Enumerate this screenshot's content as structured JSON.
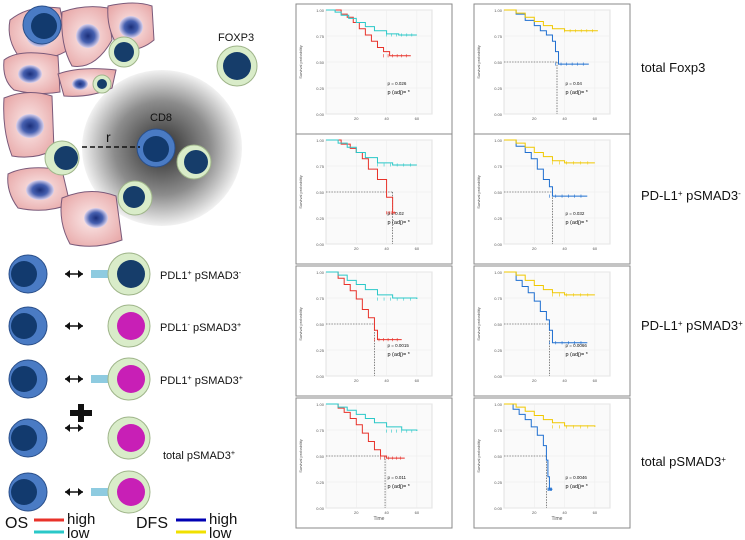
{
  "schematic": {
    "foxp3_label": "FOXP3",
    "cd8_label": "CD8",
    "radius_label": "r",
    "rows": [
      {
        "label": "PDL1",
        "sup1": "+",
        "label2": "pSMAD3",
        "sup2": "-",
        "inner": "navy",
        "has_pdl1": true
      },
      {
        "label": "PDL1",
        "sup1": "-",
        "label2": "pSMAD3",
        "sup2": "+",
        "inner": "magenta",
        "has_pdl1": false
      },
      {
        "label": "PDL1",
        "sup1": "+",
        "label2": "pSMAD3",
        "sup2": "+",
        "inner": "magenta",
        "has_pdl1": true
      }
    ],
    "total_label": "total pSMAD3",
    "total_sup": "+",
    "colors": {
      "cell_body": "#f0c8c8",
      "cell_border": "#8a6a8a",
      "nucleus": "#2a3f8a",
      "tcell_outer": "#4a7bc4",
      "tcell_inner": "#123a6e",
      "target_outer": "#d9ecc9",
      "target_inner_navy": "#163d6a",
      "target_inner_magenta": "#c81fb6",
      "pdl1": "#8ecbe0"
    }
  },
  "legend": {
    "os_label": "OS",
    "dfs_label": "DFS",
    "os_high": "high",
    "os_low": "low",
    "dfs_high": "high",
    "dfs_low": "low",
    "os_high_color": "#e8322a",
    "os_low_color": "#2ac8c8",
    "dfs_high_color": "#0000b3",
    "dfs_low_color": "#f0e000"
  },
  "row_labels": [
    {
      "main": "total Foxp3",
      "parts": []
    },
    {
      "main": "",
      "parts": [
        "PD-L1",
        "+",
        " pSMAD3",
        "-"
      ]
    },
    {
      "main": "",
      "parts": [
        "PD-L1",
        "+",
        " pSMAD3",
        "+"
      ]
    },
    {
      "main": "total pSMAD3",
      "sup": "+"
    }
  ],
  "chart_data": [
    {
      "type": "line",
      "panel": "OS total Foxp3",
      "ylabel": "Survival probability",
      "xlabel": "",
      "xlim": [
        0,
        70
      ],
      "ylim": [
        0,
        1
      ],
      "yticks": [
        "0.00",
        "0.25",
        "0.50",
        "0.75",
        "1.00"
      ],
      "xticks": [
        "20",
        "40",
        "60"
      ],
      "series": [
        {
          "name": "high",
          "color": "#e8322a",
          "x": [
            0,
            10,
            14,
            18,
            22,
            26,
            30,
            34,
            38,
            42,
            56
          ],
          "y": [
            1.0,
            0.96,
            0.93,
            0.88,
            0.82,
            0.76,
            0.7,
            0.64,
            0.6,
            0.56,
            0.56
          ]
        },
        {
          "name": "low",
          "color": "#2ac8c8",
          "x": [
            0,
            6,
            10,
            15,
            20,
            26,
            32,
            40,
            48,
            60
          ],
          "y": [
            1.0,
            0.98,
            0.95,
            0.92,
            0.88,
            0.84,
            0.8,
            0.77,
            0.76,
            0.76
          ]
        }
      ],
      "pval": "p = 0.026",
      "padj": "p (adj)= *",
      "median_line": false
    },
    {
      "type": "line",
      "panel": "DFS total Foxp3",
      "ylabel": "Survival probability",
      "xlabel": "",
      "xlim": [
        0,
        70
      ],
      "ylim": [
        0,
        1
      ],
      "yticks": [
        "0.00",
        "0.25",
        "0.50",
        "0.75",
        "1.00"
      ],
      "xticks": [
        "20",
        "40",
        "60"
      ],
      "series": [
        {
          "name": "high",
          "color": "#1f6fd0",
          "x": [
            0,
            8,
            14,
            20,
            24,
            28,
            32,
            34,
            36,
            56
          ],
          "y": [
            1.0,
            0.96,
            0.9,
            0.85,
            0.8,
            0.76,
            0.7,
            0.6,
            0.48,
            0.48
          ]
        },
        {
          "name": "low",
          "color": "#f0c800",
          "x": [
            0,
            8,
            14,
            20,
            26,
            32,
            40,
            50,
            62
          ],
          "y": [
            1.0,
            0.97,
            0.93,
            0.89,
            0.85,
            0.82,
            0.8,
            0.8,
            0.8
          ]
        }
      ],
      "pval": "p = 0.04",
      "padj": "p (adj)= *",
      "median_x": 35
    },
    {
      "type": "line",
      "panel": "OS PD-L1+ pSMAD3-",
      "ylabel": "Survival probability",
      "xlabel": "",
      "xlim": [
        0,
        70
      ],
      "ylim": [
        0,
        1
      ],
      "yticks": [
        "0.00",
        "0.25",
        "0.50",
        "0.75",
        "1.00"
      ],
      "xticks": [
        "20",
        "40",
        "60"
      ],
      "series": [
        {
          "name": "high",
          "color": "#e8322a",
          "x": [
            0,
            10,
            16,
            20,
            24,
            28,
            34,
            40,
            44,
            46
          ],
          "y": [
            1.0,
            0.96,
            0.92,
            0.88,
            0.82,
            0.72,
            0.62,
            0.45,
            0.3,
            0.3
          ]
        },
        {
          "name": "low",
          "color": "#2ac8c8",
          "x": [
            0,
            8,
            14,
            20,
            26,
            34,
            44,
            60
          ],
          "y": [
            1.0,
            0.97,
            0.93,
            0.88,
            0.83,
            0.78,
            0.76,
            0.76
          ]
        }
      ],
      "pval": "p = 0.02",
      "padj": "p (adj)= *",
      "median_x": 44
    },
    {
      "type": "line",
      "panel": "DFS PD-L1+ pSMAD3-",
      "ylabel": "Survival probability",
      "xlabel": "",
      "xlim": [
        0,
        70
      ],
      "ylim": [
        0,
        1
      ],
      "yticks": [
        "0.00",
        "0.25",
        "0.50",
        "0.75",
        "1.00"
      ],
      "xticks": [
        "20",
        "40",
        "60"
      ],
      "series": [
        {
          "name": "high",
          "color": "#1f6fd0",
          "x": [
            0,
            8,
            14,
            18,
            22,
            26,
            30,
            32,
            55
          ],
          "y": [
            1.0,
            0.94,
            0.88,
            0.82,
            0.72,
            0.62,
            0.55,
            0.46,
            0.46
          ]
        },
        {
          "name": "low",
          "color": "#f0c800",
          "x": [
            0,
            8,
            14,
            20,
            26,
            32,
            40,
            60
          ],
          "y": [
            1.0,
            0.97,
            0.93,
            0.88,
            0.84,
            0.8,
            0.78,
            0.78
          ]
        }
      ],
      "pval": "p = 0.032",
      "padj": "p (adj)= *",
      "median_x": 32
    },
    {
      "type": "line",
      "panel": "OS PD-L1+ pSMAD3+",
      "ylabel": "Survival probability",
      "xlabel": "",
      "xlim": [
        0,
        70
      ],
      "ylim": [
        0,
        1
      ],
      "yticks": [
        "0.00",
        "0.25",
        "0.50",
        "0.75",
        "1.00"
      ],
      "xticks": [
        "20",
        "40",
        "60"
      ],
      "series": [
        {
          "name": "high",
          "color": "#e8322a",
          "x": [
            0,
            8,
            12,
            16,
            20,
            24,
            28,
            32,
            34,
            50
          ],
          "y": [
            1.0,
            0.94,
            0.88,
            0.82,
            0.74,
            0.64,
            0.56,
            0.44,
            0.35,
            0.35
          ]
        },
        {
          "name": "low",
          "color": "#2ac8c8",
          "x": [
            0,
            8,
            14,
            20,
            26,
            34,
            44,
            60
          ],
          "y": [
            1.0,
            0.97,
            0.92,
            0.88,
            0.83,
            0.78,
            0.75,
            0.74
          ]
        }
      ],
      "pval": "p = 0.0015",
      "padj": "p (adj)= *",
      "median_x": 32
    },
    {
      "type": "line",
      "panel": "DFS PD-L1+ pSMAD3+",
      "ylabel": "Survival probability",
      "xlabel": "",
      "xlim": [
        0,
        70
      ],
      "ylim": [
        0,
        1
      ],
      "yticks": [
        "0.00",
        "0.25",
        "0.50",
        "0.75",
        "1.00"
      ],
      "xticks": [
        "20",
        "40",
        "60"
      ],
      "series": [
        {
          "name": "high",
          "color": "#1f6fd0",
          "x": [
            0,
            8,
            12,
            16,
            20,
            24,
            28,
            30,
            32,
            55
          ],
          "y": [
            1.0,
            0.92,
            0.86,
            0.8,
            0.72,
            0.62,
            0.54,
            0.44,
            0.32,
            0.32
          ]
        },
        {
          "name": "low",
          "color": "#f0c800",
          "x": [
            0,
            8,
            14,
            20,
            26,
            32,
            40,
            60
          ],
          "y": [
            1.0,
            0.97,
            0.92,
            0.87,
            0.83,
            0.8,
            0.78,
            0.78
          ]
        }
      ],
      "pval": "p = 0.0066",
      "padj": "p (adj)= *",
      "median_x": 30
    },
    {
      "type": "line",
      "panel": "OS total pSMAD3+",
      "ylabel": "Survival probability",
      "xlabel": "Time",
      "xlim": [
        0,
        70
      ],
      "ylim": [
        0,
        1
      ],
      "yticks": [
        "0.00",
        "0.25",
        "0.50",
        "0.75",
        "1.00"
      ],
      "xticks": [
        "20",
        "40",
        "60"
      ],
      "series": [
        {
          "name": "high",
          "color": "#e8322a",
          "x": [
            0,
            8,
            12,
            16,
            20,
            24,
            28,
            32,
            36,
            40,
            52
          ],
          "y": [
            1.0,
            0.96,
            0.92,
            0.86,
            0.8,
            0.72,
            0.64,
            0.56,
            0.5,
            0.48,
            0.48
          ]
        },
        {
          "name": "low",
          "color": "#2ac8c8",
          "x": [
            0,
            8,
            14,
            20,
            26,
            32,
            40,
            50,
            60
          ],
          "y": [
            1.0,
            0.97,
            0.94,
            0.9,
            0.86,
            0.82,
            0.78,
            0.75,
            0.74
          ]
        }
      ],
      "pval": "p = 0.011",
      "padj": "p (adj)= *",
      "median_x": 39
    },
    {
      "type": "line",
      "panel": "DFS total pSMAD3+",
      "ylabel": "Survival probability",
      "xlabel": "Time",
      "xlim": [
        0,
        70
      ],
      "ylim": [
        0,
        1
      ],
      "yticks": [
        "0.00",
        "0.25",
        "0.50",
        "0.75",
        "1.00"
      ],
      "xticks": [
        "20",
        "40",
        "60"
      ],
      "series": [
        {
          "name": "high",
          "color": "#1f6fd0",
          "x": [
            0,
            6,
            10,
            14,
            18,
            22,
            26,
            28,
            29,
            30,
            32
          ],
          "y": [
            1.0,
            0.95,
            0.9,
            0.85,
            0.78,
            0.7,
            0.6,
            0.46,
            0.3,
            0.18,
            0.18
          ]
        },
        {
          "name": "low",
          "color": "#f0c800",
          "x": [
            0,
            8,
            14,
            20,
            26,
            32,
            40,
            60
          ],
          "y": [
            1.0,
            0.97,
            0.93,
            0.89,
            0.85,
            0.82,
            0.79,
            0.78
          ]
        }
      ],
      "pval": "p = 0.0046",
      "padj": "p (adj)= *",
      "median_x": 28
    }
  ]
}
